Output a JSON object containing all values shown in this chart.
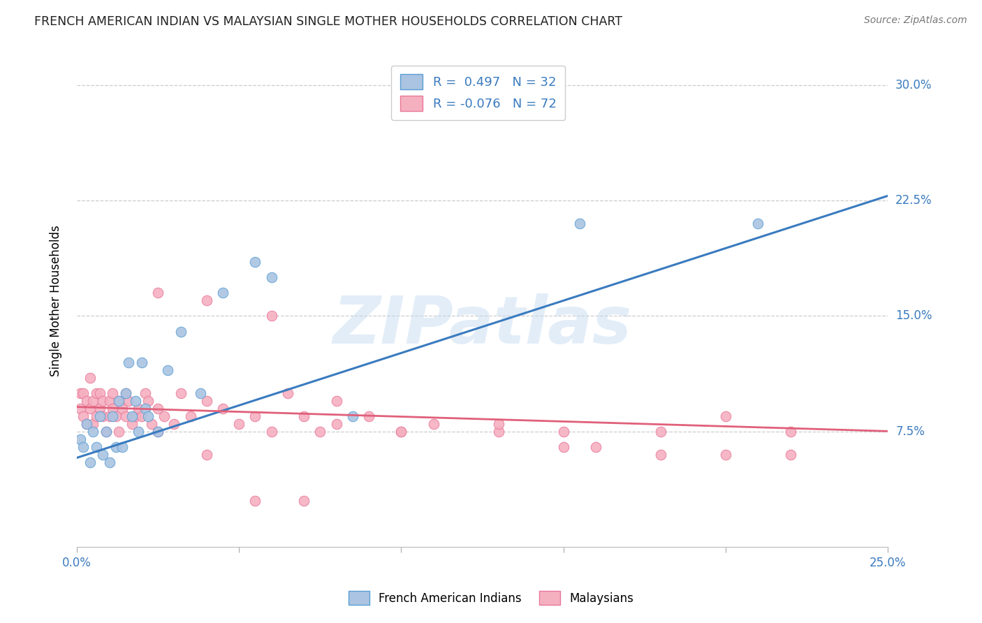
{
  "title": "FRENCH AMERICAN INDIAN VS MALAYSIAN SINGLE MOTHER HOUSEHOLDS CORRELATION CHART",
  "source": "Source: ZipAtlas.com",
  "ylabel": "Single Mother Households",
  "ytick_labels": [
    "7.5%",
    "15.0%",
    "22.5%",
    "30.0%"
  ],
  "ytick_values": [
    0.075,
    0.15,
    0.225,
    0.3
  ],
  "xlim": [
    0.0,
    0.25
  ],
  "ylim": [
    0.0,
    0.32
  ],
  "legend_blue_r": "R =  0.497",
  "legend_blue_n": "N = 32",
  "legend_pink_r": "R = -0.076",
  "legend_pink_n": "N = 72",
  "legend_label_blue": "French American Indians",
  "legend_label_pink": "Malaysians",
  "blue_color": "#aac4e2",
  "pink_color": "#f5b0c0",
  "blue_line_color": "#3a7bbf",
  "pink_line_color": "#e0607a",
  "blue_edge_color": "#5a9fd4",
  "pink_edge_color": "#e8789a",
  "watermark": "ZIPatlas",
  "blue_intercept": 0.058,
  "blue_slope": 0.68,
  "pink_intercept": 0.091,
  "pink_slope": -0.063,
  "blue_x": [
    0.001,
    0.002,
    0.003,
    0.004,
    0.005,
    0.006,
    0.007,
    0.008,
    0.009,
    0.01,
    0.011,
    0.012,
    0.013,
    0.014,
    0.015,
    0.016,
    0.017,
    0.018,
    0.019,
    0.02,
    0.021,
    0.022,
    0.025,
    0.028,
    0.032,
    0.038,
    0.045,
    0.055,
    0.06,
    0.085,
    0.155,
    0.21
  ],
  "blue_y": [
    0.07,
    0.065,
    0.08,
    0.055,
    0.075,
    0.065,
    0.085,
    0.06,
    0.075,
    0.055,
    0.085,
    0.065,
    0.095,
    0.065,
    0.1,
    0.12,
    0.085,
    0.095,
    0.075,
    0.12,
    0.09,
    0.085,
    0.075,
    0.115,
    0.14,
    0.1,
    0.165,
    0.185,
    0.175,
    0.085,
    0.21,
    0.21
  ],
  "pink_x": [
    0.001,
    0.001,
    0.002,
    0.002,
    0.003,
    0.003,
    0.004,
    0.004,
    0.005,
    0.005,
    0.006,
    0.006,
    0.007,
    0.007,
    0.008,
    0.008,
    0.009,
    0.01,
    0.01,
    0.011,
    0.011,
    0.012,
    0.013,
    0.013,
    0.014,
    0.015,
    0.015,
    0.016,
    0.017,
    0.018,
    0.019,
    0.02,
    0.021,
    0.022,
    0.023,
    0.025,
    0.027,
    0.03,
    0.032,
    0.035,
    0.04,
    0.045,
    0.05,
    0.055,
    0.06,
    0.065,
    0.07,
    0.075,
    0.08,
    0.09,
    0.1,
    0.11,
    0.13,
    0.15,
    0.16,
    0.18,
    0.2,
    0.22,
    0.025,
    0.04,
    0.06,
    0.08,
    0.1,
    0.13,
    0.15,
    0.18,
    0.2,
    0.22,
    0.025,
    0.04,
    0.055,
    0.07
  ],
  "pink_y": [
    0.09,
    0.1,
    0.085,
    0.1,
    0.08,
    0.095,
    0.09,
    0.11,
    0.08,
    0.095,
    0.085,
    0.1,
    0.09,
    0.1,
    0.085,
    0.095,
    0.075,
    0.085,
    0.095,
    0.09,
    0.1,
    0.085,
    0.095,
    0.075,
    0.09,
    0.085,
    0.1,
    0.095,
    0.08,
    0.085,
    0.09,
    0.085,
    0.1,
    0.095,
    0.08,
    0.09,
    0.085,
    0.08,
    0.1,
    0.085,
    0.095,
    0.09,
    0.08,
    0.085,
    0.075,
    0.1,
    0.085,
    0.075,
    0.08,
    0.085,
    0.075,
    0.08,
    0.075,
    0.075,
    0.065,
    0.075,
    0.085,
    0.075,
    0.165,
    0.16,
    0.15,
    0.095,
    0.075,
    0.08,
    0.065,
    0.06,
    0.06,
    0.06,
    0.075,
    0.06,
    0.03,
    0.03
  ]
}
